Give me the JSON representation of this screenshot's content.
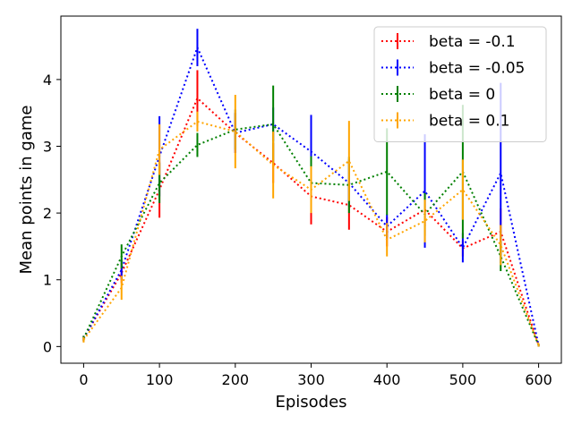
{
  "chart_data": {
    "type": "line",
    "xlabel": "Episodes",
    "ylabel": "Mean points in game",
    "xlim": [
      -30,
      630
    ],
    "ylim": [
      -0.25,
      4.95
    ],
    "xticks": [
      0,
      100,
      200,
      300,
      400,
      500,
      600
    ],
    "yticks": [
      0,
      1,
      2,
      3,
      4
    ],
    "grid": false,
    "legend_position": "top-right",
    "x": [
      0,
      50,
      100,
      150,
      200,
      250,
      300,
      350,
      400,
      450,
      500,
      550,
      600
    ],
    "series": [
      {
        "name": "beta = -0.1",
        "color": "#ff0000",
        "values": [
          0.12,
          1.1,
          2.35,
          3.72,
          3.2,
          2.75,
          2.25,
          2.12,
          1.72,
          2.05,
          1.47,
          1.72,
          0.02
        ],
        "errors": [
          0.04,
          0.15,
          0.42,
          0.42,
          0.3,
          0.3,
          0.42,
          0.37,
          0.22,
          0.25,
          0.12,
          0.35,
          0.02
        ]
      },
      {
        "name": "beta = -0.05",
        "color": "#0000ff",
        "values": [
          0.12,
          1.15,
          2.85,
          4.48,
          3.2,
          3.33,
          2.92,
          2.45,
          1.8,
          2.33,
          1.48,
          2.6,
          0.02
        ],
        "errors": [
          0.04,
          0.15,
          0.6,
          0.28,
          0.3,
          0.25,
          0.55,
          0.35,
          0.18,
          0.85,
          0.22,
          1.35,
          0.02
        ]
      },
      {
        "name": "beta = 0",
        "color": "#008000",
        "values": [
          0.12,
          1.35,
          2.45,
          3.02,
          3.25,
          3.33,
          2.45,
          2.42,
          2.62,
          1.98,
          2.62,
          1.35,
          0.02
        ],
        "errors": [
          0.04,
          0.18,
          0.3,
          0.18,
          0.3,
          0.58,
          0.4,
          0.42,
          0.65,
          0.32,
          1.0,
          0.22,
          0.02
        ]
      },
      {
        "name": "beta = 0.1",
        "color": "#ffa500",
        "values": [
          0.1,
          0.88,
          2.95,
          3.37,
          3.22,
          2.72,
          2.35,
          2.78,
          1.6,
          1.88,
          2.35,
          1.52,
          0.02
        ],
        "errors": [
          0.04,
          0.18,
          0.38,
          0.15,
          0.55,
          0.5,
          0.35,
          0.6,
          0.25,
          0.32,
          0.45,
          0.3,
          0.02
        ]
      }
    ]
  }
}
